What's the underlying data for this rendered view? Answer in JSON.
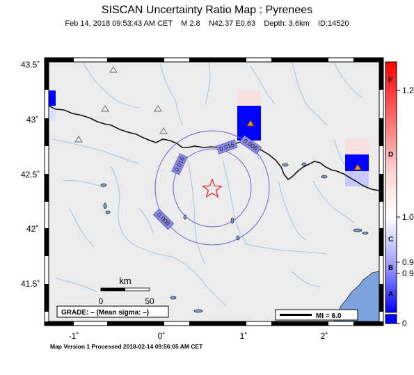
{
  "header": {
    "title": "SISCAN Uncertainty Ratio Map : Pyrenees",
    "subtitle": "Feb 14, 2018 09:53:43 AM CET    M 2.8    N42.37 E0.63    Depth: 3.6km    ID:14520"
  },
  "axes": {
    "lat_labels": [
      "43.5˚",
      "43˚",
      "42.5˚",
      "42˚",
      "41.5˚"
    ],
    "lon_labels": [
      "-1˚",
      "0˚",
      "1˚",
      "2˚"
    ]
  },
  "contours": {
    "labels": [
      "0.016",
      "0.016",
      "0.008",
      "0.008"
    ]
  },
  "scale_bar": {
    "unit": "km",
    "tick_start": "0",
    "tick_end": "50"
  },
  "grade_box": {
    "text": "GRADE: – (Mean sigma: –)"
  },
  "mi_box": {
    "text": "MI = 6.0"
  },
  "colorbar": {
    "tick_labels": [
      "1.2",
      "1.0",
      "0.9",
      "0.9",
      "0"
    ],
    "letters": [
      "F",
      "D",
      "C",
      "B",
      "A"
    ],
    "colors": {
      "top": "#ff0000",
      "mid": "#ffffff",
      "bottom": "#0000ff"
    }
  },
  "epicenter": {
    "symbol": "star-icon",
    "color": "#e02020"
  },
  "colors": {
    "land": "#ececec",
    "sea": "#7da2de",
    "rivers": "#a8c4e0",
    "border": "#111111",
    "contour": "#5a5ad6",
    "station_fill": "#ff8c00"
  },
  "footer": {
    "text": "Map Version 1 Processed 2018-02-14 09:56:05 AM CET"
  }
}
